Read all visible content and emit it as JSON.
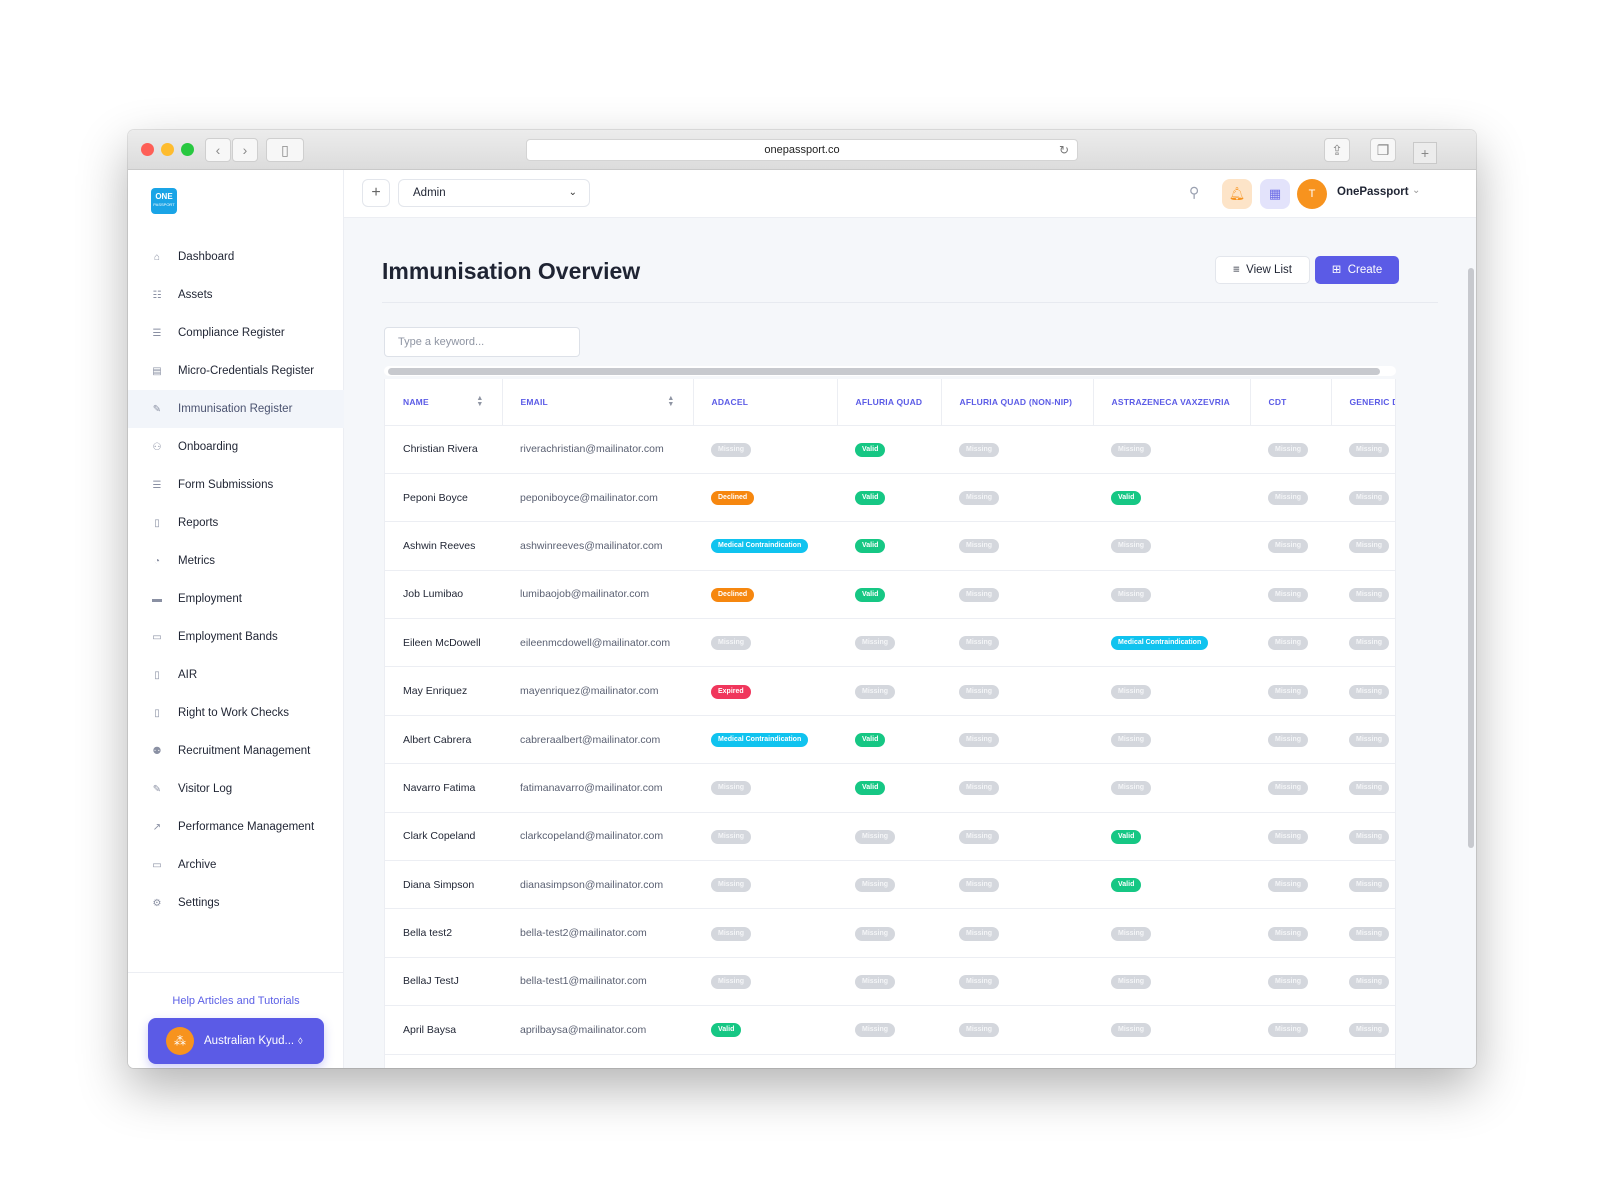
{
  "browser": {
    "url": "onepassport.co"
  },
  "logo": {
    "line1": "ONE",
    "line2": "PASSPORT"
  },
  "sidebar": {
    "items": [
      {
        "label": "Dashboard",
        "icon": "home-icon",
        "glyph": "⌂"
      },
      {
        "label": "Assets",
        "icon": "users-icon",
        "glyph": "☷"
      },
      {
        "label": "Compliance Register",
        "icon": "list-icon",
        "glyph": "☰"
      },
      {
        "label": "Micro-Credentials Register",
        "icon": "card-icon",
        "glyph": "▤"
      },
      {
        "label": "Immunisation Register",
        "icon": "syringe-icon",
        "glyph": "✎"
      },
      {
        "label": "Onboarding",
        "icon": "user-plus-icon",
        "glyph": "⚇"
      },
      {
        "label": "Form Submissions",
        "icon": "list-icon",
        "glyph": "☰"
      },
      {
        "label": "Reports",
        "icon": "document-icon",
        "glyph": "▯"
      },
      {
        "label": "Metrics",
        "icon": "pie-chart-icon",
        "glyph": "◔"
      },
      {
        "label": "Employment",
        "icon": "briefcase-icon",
        "glyph": "▬"
      },
      {
        "label": "Employment Bands",
        "icon": "briefcase-outline-icon",
        "glyph": "▭"
      },
      {
        "label": "AIR",
        "icon": "file-icon",
        "glyph": "▯"
      },
      {
        "label": "Right to Work Checks",
        "icon": "clipboard-icon",
        "glyph": "▯"
      },
      {
        "label": "Recruitment Management",
        "icon": "team-icon",
        "glyph": "⚉"
      },
      {
        "label": "Visitor Log",
        "icon": "pen-icon",
        "glyph": "✎"
      },
      {
        "label": "Performance Management",
        "icon": "trend-icon",
        "glyph": "↗"
      },
      {
        "label": "Archive",
        "icon": "archive-icon",
        "glyph": "▭"
      },
      {
        "label": "Settings",
        "icon": "gear-icon",
        "glyph": "⚙"
      }
    ],
    "active_index": 4,
    "help_link": "Help Articles and Tutorials",
    "org_label": "Australian Kyud...",
    "org_caret": "◊"
  },
  "topbar": {
    "add_label": "+",
    "role_value": "Admin",
    "user_initial": "T",
    "user_name": "OnePassport"
  },
  "page": {
    "title": "Immunisation Overview",
    "view_list_label": "View List",
    "create_label": "Create",
    "search_placeholder": "Type a keyword..."
  },
  "table": {
    "columns": [
      "NAME",
      "EMAIL",
      "ADACEL",
      "AFLURIA QUAD",
      "AFLURIA QUAD (NON-NIP)",
      "ASTRAZENECA VAXZEVRIA",
      "CDT",
      "GENERIC D"
    ],
    "rows": [
      {
        "name": "Christian Rivera",
        "email": "riverachristian@mailinator.com",
        "statuses": [
          "Missing",
          "Valid",
          "Missing",
          "Missing",
          "Missing",
          "Missing"
        ]
      },
      {
        "name": "Peponi Boyce",
        "email": "peponiboyce@mailinator.com",
        "statuses": [
          "Declined",
          "Valid",
          "Missing",
          "Valid",
          "Missing",
          "Missing"
        ]
      },
      {
        "name": "Ashwin Reeves",
        "email": "ashwinreeves@mailinator.com",
        "statuses": [
          "Medical Contraindication",
          "Valid",
          "Missing",
          "Missing",
          "Missing",
          "Missing"
        ]
      },
      {
        "name": "Job Lumibao",
        "email": "lumibaojob@mailinator.com",
        "statuses": [
          "Declined",
          "Valid",
          "Missing",
          "Missing",
          "Missing",
          "Missing"
        ]
      },
      {
        "name": "Eileen McDowell",
        "email": "eileenmcdowell@mailinator.com",
        "statuses": [
          "Missing",
          "Missing",
          "Missing",
          "Medical Contraindication",
          "Missing",
          "Missing"
        ]
      },
      {
        "name": "May Enriquez",
        "email": "mayenriquez@mailinator.com",
        "statuses": [
          "Expired",
          "Missing",
          "Missing",
          "Missing",
          "Missing",
          "Missing"
        ]
      },
      {
        "name": "Albert Cabrera",
        "email": "cabreraalbert@mailinator.com",
        "statuses": [
          "Medical Contraindication",
          "Valid",
          "Missing",
          "Missing",
          "Missing",
          "Missing"
        ]
      },
      {
        "name": "Navarro Fatima",
        "email": "fatimanavarro@mailinator.com",
        "statuses": [
          "Missing",
          "Valid",
          "Missing",
          "Missing",
          "Missing",
          "Missing"
        ]
      },
      {
        "name": "Clark Copeland",
        "email": "clarkcopeland@mailinator.com",
        "statuses": [
          "Missing",
          "Missing",
          "Missing",
          "Valid",
          "Missing",
          "Missing"
        ]
      },
      {
        "name": "Diana Simpson",
        "email": "dianasimpson@mailinator.com",
        "statuses": [
          "Missing",
          "Missing",
          "Missing",
          "Valid",
          "Missing",
          "Missing"
        ]
      },
      {
        "name": "Bella test2",
        "email": "bella-test2@mailinator.com",
        "statuses": [
          "Missing",
          "Missing",
          "Missing",
          "Missing",
          "Missing",
          "Missing"
        ]
      },
      {
        "name": "BellaJ TestJ",
        "email": "bella-test1@mailinator.com",
        "statuses": [
          "Missing",
          "Missing",
          "Missing",
          "Missing",
          "Missing",
          "Missing"
        ]
      },
      {
        "name": "April Baysa",
        "email": "aprilbaysa@mailinator.com",
        "statuses": [
          "Valid",
          "Missing",
          "Missing",
          "Missing",
          "Missing",
          "Missing"
        ]
      }
    ]
  },
  "colors": {
    "accent": "#5b5be6",
    "valid": "#16c784",
    "declined": "#f6870f",
    "expired": "#f0365c",
    "medical_contraindication": "#10c3ef",
    "missing": "#d4d7dd"
  }
}
